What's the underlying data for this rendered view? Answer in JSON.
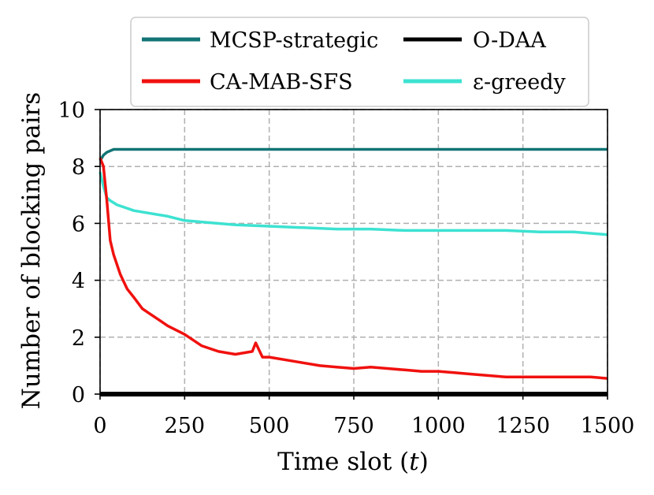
{
  "chart_data": {
    "type": "line",
    "xlabel": "Time slot (t)",
    "xlabel_prefix": "Time slot (",
    "xlabel_var": "t",
    "xlabel_suffix": ")",
    "ylabel": "Number of blocking pairs",
    "xlim": [
      0,
      1500
    ],
    "ylim": [
      0,
      10
    ],
    "xticks": [
      0,
      250,
      500,
      750,
      1000,
      1250,
      1500
    ],
    "xtick_labels": [
      "0",
      "250",
      "500",
      "750",
      "1000",
      "1250",
      "1500"
    ],
    "yticks": [
      0,
      2,
      4,
      6,
      8,
      10
    ],
    "ytick_labels": [
      "0",
      "2",
      "4",
      "6",
      "8",
      "10"
    ],
    "grid": true,
    "legend_position": "top",
    "series": [
      {
        "name": "MCSP-strategic",
        "color": "#137475",
        "x": [
          0,
          10,
          20,
          40,
          60,
          100,
          150,
          200,
          250,
          300,
          400,
          500,
          600,
          700,
          800,
          900,
          1000,
          1100,
          1200,
          1300,
          1400,
          1500
        ],
        "y": [
          8.2,
          8.4,
          8.5,
          8.6,
          8.6,
          8.6,
          8.6,
          8.6,
          8.6,
          8.6,
          8.6,
          8.6,
          8.6,
          8.6,
          8.6,
          8.6,
          8.6,
          8.6,
          8.6,
          8.6,
          8.6,
          8.6
        ]
      },
      {
        "name": "O-DAA",
        "color": "#000000",
        "x": [
          0,
          1500
        ],
        "y": [
          0,
          0
        ]
      },
      {
        "name": "CA-MAB-SFS",
        "color": "#f0110e",
        "x": [
          0,
          10,
          20,
          30,
          40,
          60,
          80,
          100,
          125,
          150,
          175,
          200,
          250,
          300,
          350,
          400,
          450,
          460,
          480,
          500,
          550,
          600,
          650,
          700,
          750,
          800,
          850,
          900,
          950,
          1000,
          1050,
          1100,
          1150,
          1200,
          1250,
          1300,
          1350,
          1400,
          1450,
          1500
        ],
        "y": [
          8.3,
          8.0,
          6.8,
          5.4,
          4.9,
          4.2,
          3.7,
          3.4,
          3.0,
          2.8,
          2.6,
          2.4,
          2.1,
          1.7,
          1.5,
          1.4,
          1.5,
          1.8,
          1.3,
          1.3,
          1.2,
          1.1,
          1.0,
          0.95,
          0.9,
          0.95,
          0.9,
          0.85,
          0.8,
          0.8,
          0.75,
          0.7,
          0.65,
          0.6,
          0.6,
          0.6,
          0.6,
          0.6,
          0.6,
          0.55
        ]
      },
      {
        "name": "ε-greedy",
        "color": "#3de2d1",
        "x": [
          0,
          10,
          20,
          30,
          50,
          75,
          100,
          150,
          200,
          250,
          300,
          400,
          500,
          600,
          700,
          800,
          900,
          1000,
          1100,
          1200,
          1300,
          1400,
          1500
        ],
        "y": [
          7.8,
          7.3,
          6.9,
          6.8,
          6.65,
          6.55,
          6.45,
          6.35,
          6.25,
          6.1,
          6.05,
          5.95,
          5.9,
          5.85,
          5.8,
          5.8,
          5.75,
          5.75,
          5.75,
          5.75,
          5.7,
          5.7,
          5.6
        ]
      }
    ]
  }
}
